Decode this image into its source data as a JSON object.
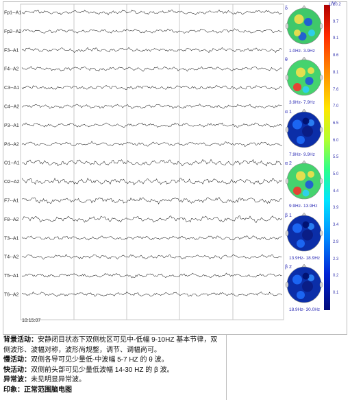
{
  "eeg": {
    "channels": [
      "Fp1--A1",
      "Fp2--A2",
      "F3--A1",
      "F4--A2",
      "C3--A1",
      "C4--A2",
      "P3--A1",
      "P4--A2",
      "O1--A1",
      "O2--A2",
      "F7--A1",
      "F8--A2",
      "T3--A1",
      "T4--A2",
      "T5--A1",
      "T6--A2"
    ],
    "timestamp": "10:15:07"
  },
  "maps": [
    {
      "band": "δ",
      "range": "1.0Hz- 3.9Hz",
      "theme": "alpha"
    },
    {
      "band": "θ",
      "range": "3.9Hz- 7.9Hz",
      "theme": "theta"
    },
    {
      "band": "α 1",
      "range": "7.9Hz- 9.9Hz",
      "theme": "cool"
    },
    {
      "band": "α 2",
      "range": "9.9Hz- 13.9Hz",
      "theme": "theta"
    },
    {
      "band": "β 1",
      "range": "13.9Hz- 18.9Hz",
      "theme": "cool"
    },
    {
      "band": "β 2",
      "range": "18.9Hz- 30.0Hz",
      "theme": "cool"
    }
  ],
  "colorbar": {
    "unit": "μV",
    "ticks": [
      "10.2",
      "9.7",
      "9.1",
      "8.6",
      "8.1",
      "7.6",
      "7.0",
      "6.5",
      "6.0",
      "5.5",
      "5.0",
      "4.4",
      "3.9",
      "3.4",
      "2.9",
      "2.3",
      "0.2",
      "0.1"
    ]
  },
  "report": {
    "bg_label": "背景活动：",
    "bg_text": "安静闭目状态下双侧枕区可见中-低幅 9-10HZ 基本节律，双侧波形、波幅对称，波形尚规整，调节、调幅尚可。",
    "slow_label": "慢活动：",
    "slow_text": "双侧各导可见少量低-中波幅 5-7 HZ 的 θ 波。",
    "fast_label": "快活动：",
    "fast_text": "双侧前头部可见少量低波幅 14-30 HZ 的 β 波。",
    "abn_label": "异常波：",
    "abn_text": "未见明显异常波。",
    "imp_label": "印象：",
    "imp_text": "正常范围脑电图"
  }
}
